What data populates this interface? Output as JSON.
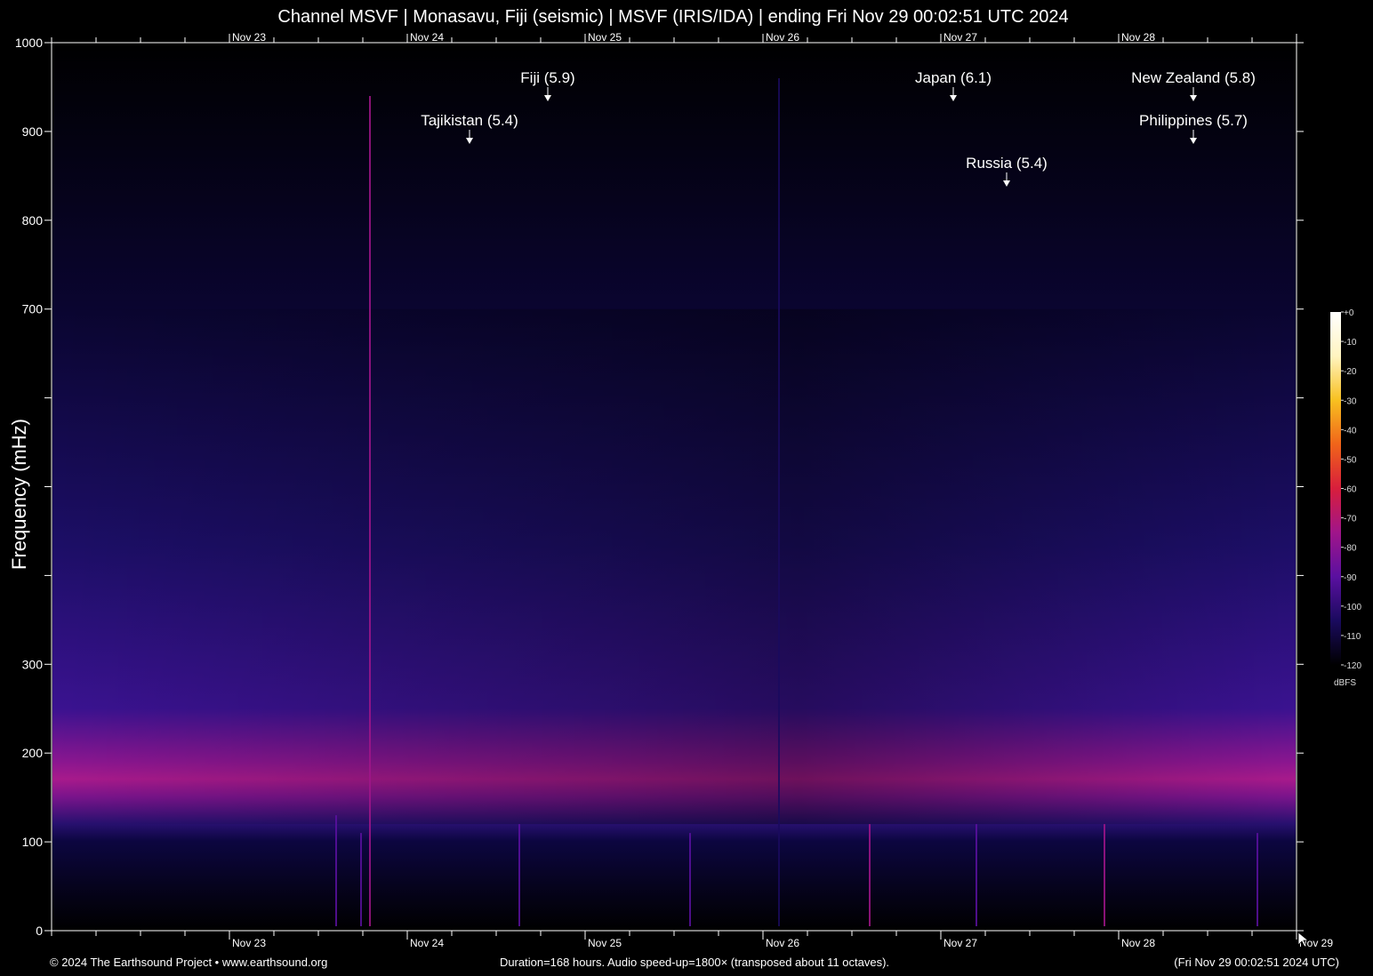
{
  "title": "Channel MSVF | Monasavu, Fiji (seismic) | MSVF (IRIS/IDA) | ending Fri Nov 29 00:02:51 UTC 2024",
  "footer": {
    "left": "© 2024 The Earthsound Project • www.earthsound.org",
    "center": "Duration=168 hours. Audio speed-up=1800× (transposed about 11 octaves).",
    "right": "(Fri Nov 29 00:02:51 2024 UTC)"
  },
  "chart_data": {
    "type": "heatmap",
    "title": "Channel MSVF | Monasavu, Fiji (seismic) | MSVF (IRIS/IDA) | ending Fri Nov 29 00:02:51 UTC 2024",
    "ylabel": "Frequency (mHz)",
    "xlabel": "",
    "ylim": [
      0,
      1000
    ],
    "xlim": [
      "Nov 22 00:02:51",
      "Nov 29 00:02:51"
    ],
    "y_ticks": [
      0,
      100,
      200,
      300,
      400,
      500,
      600,
      700,
      800,
      900,
      1000
    ],
    "y_tick_labels": [
      "0",
      "100",
      "200",
      "300",
      "",
      "",
      "",
      "700",
      "800",
      "900",
      "1000"
    ],
    "x_tick_labels": [
      "Nov 23",
      "Nov 24",
      "Nov 25",
      "Nov 26",
      "Nov 27",
      "Nov 28",
      "Nov 29"
    ],
    "x_tick_days": [
      1,
      2,
      3,
      4,
      5,
      6,
      7
    ],
    "minor_tick_step_days": 0.25,
    "colorbar": {
      "unit": "dBFS",
      "ticks": [
        0,
        -10,
        -20,
        -30,
        -40,
        -50,
        -60,
        -70,
        -80,
        -90,
        -100,
        -110,
        -120
      ],
      "tick_labels": [
        "+0",
        "-10",
        "-20",
        "-30",
        "-40",
        "-50",
        "-60",
        "-70",
        "-80",
        "-90",
        "-100",
        "-110",
        "-120"
      ],
      "colors": [
        "#000000",
        "#1a0a5e",
        "#5a10a0",
        "#a0158a",
        "#d81e3c",
        "#f0641a",
        "#f8c020",
        "#fff4c0",
        "#ffffff"
      ]
    },
    "background_band": {
      "center_mHz": 170,
      "peak_dBFS": -82,
      "upper_extent_mHz": 700,
      "lower_cutoff_mHz": 120
    },
    "annotations": [
      {
        "label": "Tajikistan (5.4)",
        "day": 2.35,
        "row": 2
      },
      {
        "label": "Fiji (5.9)",
        "day": 2.79,
        "row": 1
      },
      {
        "label": "Japan (6.1)",
        "day": 5.07,
        "row": 1
      },
      {
        "label": "Russia (5.4)",
        "day": 5.37,
        "row": 3
      },
      {
        "label": "New Zealand (5.8)",
        "day": 6.42,
        "row": 1
      },
      {
        "label": "Philippines (5.7)",
        "day": 6.42,
        "row": 2
      }
    ],
    "events": [
      {
        "day": 1.6,
        "top_mHz": 130,
        "level_dBFS": -85
      },
      {
        "day": 1.74,
        "top_mHz": 110,
        "level_dBFS": -90
      },
      {
        "day": 1.79,
        "top_mHz": 940,
        "level_dBFS": -80
      },
      {
        "day": 2.63,
        "top_mHz": 120,
        "level_dBFS": -88
      },
      {
        "day": 3.59,
        "top_mHz": 110,
        "level_dBFS": -95
      },
      {
        "day": 4.09,
        "top_mHz": 960,
        "level_dBFS": -100
      },
      {
        "day": 4.6,
        "top_mHz": 120,
        "level_dBFS": -82
      },
      {
        "day": 5.2,
        "top_mHz": 120,
        "level_dBFS": -90
      },
      {
        "day": 5.92,
        "top_mHz": 120,
        "level_dBFS": -80
      },
      {
        "day": 6.78,
        "top_mHz": 110,
        "level_dBFS": -88
      }
    ]
  }
}
